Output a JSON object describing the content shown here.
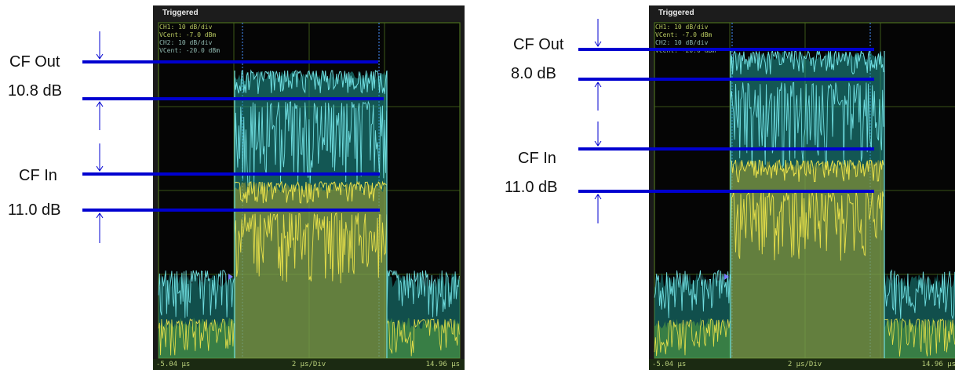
{
  "scope_left": {
    "header": "Triggered",
    "readout": {
      "ch1_scale": "CH1: 10 dB/div",
      "ch1_vcent": "VCent: -7.0 dBm",
      "ch2_scale": "CH2: 10 dB/div",
      "ch2_vcent": "VCent: -20.0 dBm"
    },
    "status": {
      "start": "-5.04 μs",
      "scale": "2 μs/Div",
      "stop": "14.96 μs"
    }
  },
  "scope_right": {
    "header": "Triggered",
    "readout": {
      "ch1_scale": "CH1: 10 dB/div",
      "ch1_vcent": "VCent: -7.0 dBm",
      "ch2_scale": "CH2: 10 dB/div",
      "ch2_vcent": "VCent: -20.0 dBm"
    },
    "status": {
      "start": "-5.04 μs",
      "scale": "2 μs/Div",
      "stop": "14.96 μs"
    }
  },
  "annotations": {
    "left": {
      "cf_out_label": "CF Out",
      "cf_out_value": "10.8 dB",
      "cf_in_label": "CF In",
      "cf_in_value": "11.0 dB"
    },
    "right": {
      "cf_out_label": "CF Out",
      "cf_out_value": "8.0 dB",
      "cf_in_label": "CF In",
      "cf_in_value": "11.0 dB"
    }
  },
  "colors": {
    "ch1_trace": "#6fdde0",
    "ch2_trace": "#e8e04a",
    "marker_line": "#0000d0",
    "grid": "#4b6e1e",
    "cursor": "#3d7bd9"
  },
  "chart_data": [
    {
      "type": "line",
      "title": "",
      "x_range": [
        "-5.04 μs",
        "14.96 μs"
      ],
      "x_scale": "2 μs/Div",
      "y_scale_db_per_div": 10,
      "series": [
        {
          "name": "CH1",
          "vcent_dbm": -7.0
        },
        {
          "name": "CH2",
          "vcent_dbm": -20.0
        }
      ],
      "crest_factor_db": {
        "CF Out": 10.8,
        "CF In": 11.0
      }
    },
    {
      "type": "line",
      "title": "",
      "x_range": [
        "-5.04 μs",
        "14.96 μs"
      ],
      "x_scale": "2 μs/Div",
      "y_scale_db_per_div": 10,
      "series": [
        {
          "name": "CH1",
          "vcent_dbm": -7.0
        },
        {
          "name": "CH2",
          "vcent_dbm": -20.0
        }
      ],
      "crest_factor_db": {
        "CF Out": 8.0,
        "CF In": 11.0
      }
    }
  ]
}
